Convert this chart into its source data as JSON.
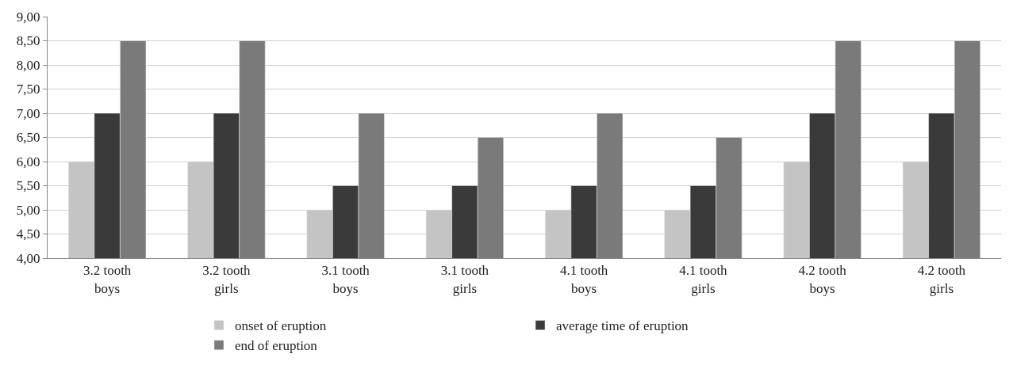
{
  "chart_data": {
    "type": "bar",
    "categories": [
      "3.2 tooth boys",
      "3.2 tooth girls",
      "3.1 tooth boys",
      "3.1 tooth girls",
      "4.1 tooth boys",
      "4.1 tooth girls",
      "4.2 tooth boys",
      "4.2 tooth girls"
    ],
    "series": [
      {
        "name": "onset of eruption",
        "color": "#c4c4c4",
        "values": [
          6,
          6,
          5,
          5,
          5,
          5,
          6,
          6
        ]
      },
      {
        "name": "average time of eruption",
        "color": "#3a3a3a",
        "values": [
          7,
          7,
          5.5,
          5.5,
          5.5,
          5.5,
          7,
          7
        ]
      },
      {
        "name": "end of eruption",
        "color": "#7a7a7a",
        "values": [
          8.5,
          8.5,
          7,
          6.5,
          7,
          6.5,
          8.5,
          8.5
        ]
      }
    ],
    "ylim": [
      4,
      9
    ],
    "yticks": [
      {
        "value": 4,
        "label": "4,00"
      },
      {
        "value": 4.5,
        "label": "4,50"
      },
      {
        "value": 5,
        "label": "5,00"
      },
      {
        "value": 5.5,
        "label": "5,50"
      },
      {
        "value": 6,
        "label": "6,00"
      },
      {
        "value": 6.5,
        "label": "6,50"
      },
      {
        "value": 7,
        "label": "7,00"
      },
      {
        "value": 7.5,
        "label": "7,50"
      },
      {
        "value": 8,
        "label": "8,00"
      },
      {
        "value": 8.5,
        "label": "8,50"
      },
      {
        "value": 9,
        "label": "9,00"
      }
    ],
    "grid": "y",
    "legend": "bottom"
  }
}
